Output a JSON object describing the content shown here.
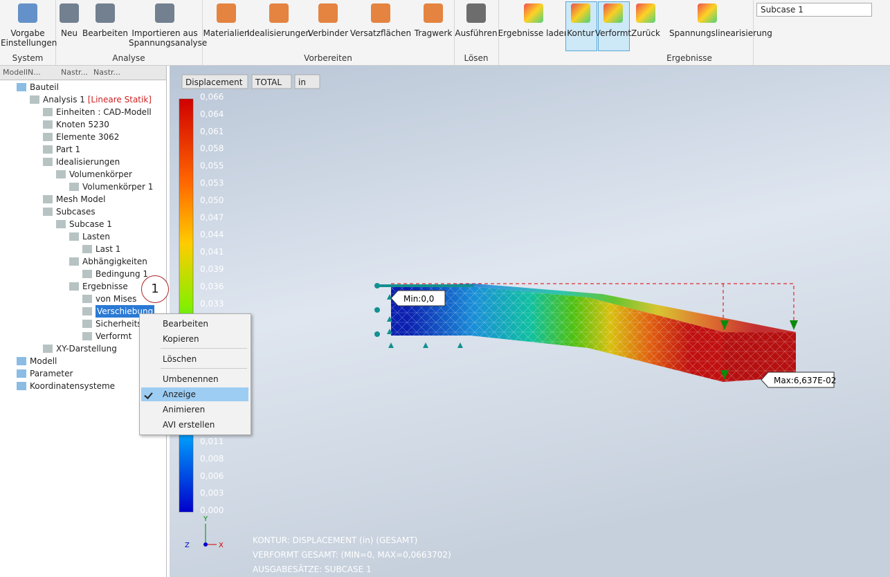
{
  "ribbon": {
    "groups": [
      {
        "title": "System",
        "buttons": [
          "Vorgabe Einstellungen"
        ]
      },
      {
        "title": "Analyse",
        "buttons": [
          "Neu",
          "Bearbeiten",
          "Importieren aus Spannungsanalyse"
        ]
      },
      {
        "title": "Vorbereiten",
        "buttons": [
          "Materialien",
          "Idealisierungen",
          "Verbinder",
          "Versatzflächen",
          "Tragwerk"
        ]
      },
      {
        "title": "Lösen",
        "buttons": [
          "Ausführen"
        ]
      },
      {
        "title": "Ergebnisse",
        "buttons": [
          "Ergebnisse laden",
          "Kontur",
          "Verformt",
          "Zurück",
          "Spannungslinearisierung"
        ]
      }
    ],
    "subcase_select": "Subcase 1"
  },
  "browser": {
    "tabs": [
      "Modell",
      "N...",
      "Nastr...",
      "Nastr..."
    ],
    "tree": [
      {
        "label": "Bauteil"
      },
      {
        "label": "Analysis 1",
        "tag": "[Lineare Statik]"
      },
      {
        "label": "Einheiten : CAD-Modell"
      },
      {
        "label": "Knoten 5230"
      },
      {
        "label": "Elemente 3062"
      },
      {
        "label": "Part 1"
      },
      {
        "label": "Idealisierungen"
      },
      {
        "label": "Volumenkörper"
      },
      {
        "label": "Volumenkörper 1"
      },
      {
        "label": "Mesh Model"
      },
      {
        "label": "Subcases"
      },
      {
        "label": "Subcase 1"
      },
      {
        "label": "Lasten"
      },
      {
        "label": "Last 1"
      },
      {
        "label": "Abhängigkeiten"
      },
      {
        "label": "Bedingung 1"
      },
      {
        "label": "Ergebnisse"
      },
      {
        "label": "von Mises"
      },
      {
        "label": "Verschiebung"
      },
      {
        "label": "Sicherheitsf"
      },
      {
        "label": "Verformt"
      },
      {
        "label": "XY-Darstellung"
      },
      {
        "label": "Modell"
      },
      {
        "label": "Parameter"
      },
      {
        "label": "Koordinatensysteme"
      }
    ]
  },
  "context_menu": {
    "items": [
      {
        "label": "Bearbeiten"
      },
      {
        "label": "Kopieren"
      },
      {
        "label": "Löschen"
      },
      {
        "label": "Umbenennen"
      },
      {
        "label": "Anzeige",
        "checked": true
      },
      {
        "label": "Animieren"
      },
      {
        "label": "AVI erstellen"
      }
    ]
  },
  "viewport": {
    "dropdowns": [
      "Displacement",
      "TOTAL",
      "in"
    ],
    "legend": [
      "0,066",
      "0,064",
      "0,061",
      "0,058",
      "0,055",
      "0,053",
      "0,050",
      "0,047",
      "0,044",
      "0,041",
      "0,039",
      "0,036",
      "0,033",
      "0,011",
      "0,008",
      "0,006",
      "0,003",
      "0,000"
    ],
    "min_label": "Min:0,0",
    "max_label": "Max:6,637E-02",
    "callout": "1",
    "triad": [
      "Y",
      "X",
      "Z"
    ],
    "footer": [
      "KONTUR: DISPLACEMENT (in) (GESAMT)",
      "VERFORMT GESAMT: (MIN=0, MAX=0,0663702)",
      "AUSGABESÄTZE: SUBCASE 1"
    ]
  }
}
